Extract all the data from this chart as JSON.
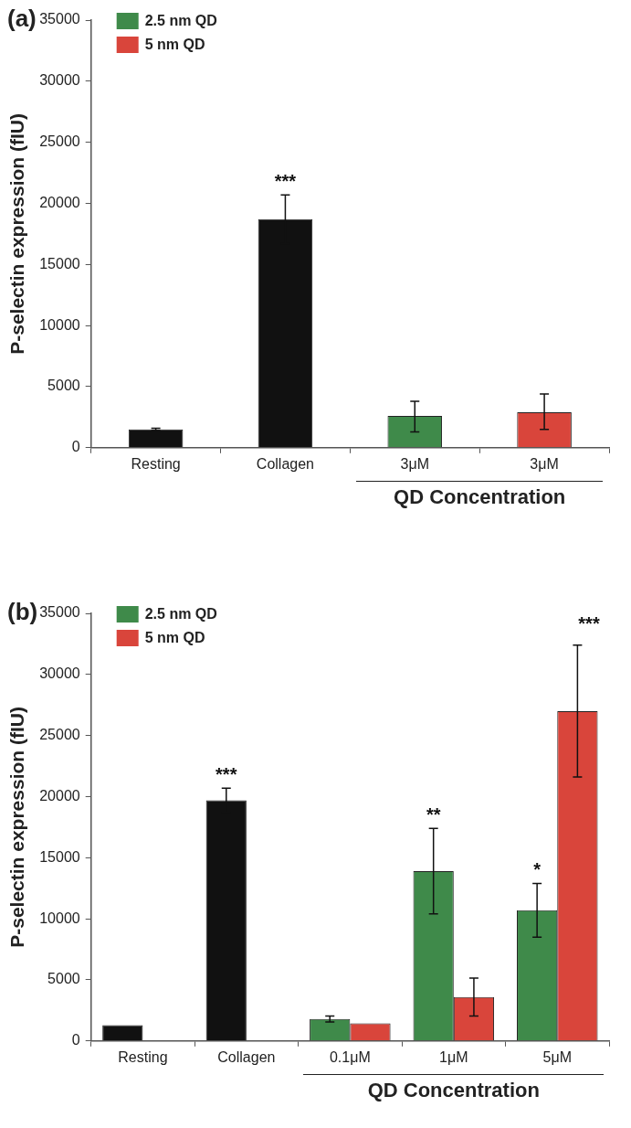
{
  "chart_data": [
    {
      "type": "bar",
      "title": "(a)",
      "ylabel": "P-selectin expression (fIU)",
      "xlabel": "QD Concentration",
      "categories": [
        "Resting",
        "Collagen",
        "3μM",
        "3μM"
      ],
      "series": [
        {
          "name": "2.5 nm QD",
          "color": "#3f8a4a",
          "colors": [
            "#111111",
            "#111111",
            "#3f8a4a",
            null
          ],
          "values": [
            1500,
            18700,
            2600,
            null
          ],
          "errors": [
            100,
            2000,
            [
              1300,
              3800
            ],
            null
          ]
        },
        {
          "name": "5 nm QD",
          "color": "#d9453b",
          "values": [
            null,
            null,
            null,
            2900
          ],
          "errors": [
            null,
            null,
            null,
            [
              1500,
              4400
            ]
          ]
        }
      ],
      "ylim": [
        0,
        35000
      ],
      "yticks": [
        0,
        5000,
        10000,
        15000,
        20000,
        25000,
        30000,
        35000
      ],
      "grid": false,
      "legend": "top left",
      "annotations": [
        {
          "text": "***",
          "x": "Collagen",
          "y": 18700
        }
      ]
    },
    {
      "type": "bar",
      "title": "(b)",
      "ylabel": "P-selectin expression (fIU)",
      "xlabel": "QD Concentration",
      "categories": [
        "Resting",
        "Collagen",
        "0.1μM",
        "1μM",
        "5μM"
      ],
      "series": [
        {
          "name": "2.5 nm QD",
          "color": "#3f8a4a",
          "colors": [
            "#111111",
            "#111111",
            "#3f8a4a",
            "#3f8a4a",
            "#3f8a4a"
          ],
          "values": [
            1300,
            19700,
            1800,
            13900,
            10700
          ],
          "errors": [
            null,
            1000,
            250,
            3500,
            2200
          ]
        },
        {
          "name": "5 nm QD",
          "color": "#d9453b",
          "values": [
            0,
            0,
            1450,
            3600,
            27000
          ],
          "errors": [
            null,
            null,
            null,
            1550,
            5400
          ]
        }
      ],
      "ylim": [
        0,
        35000
      ],
      "yticks": [
        0,
        5000,
        10000,
        15000,
        20000,
        25000,
        30000,
        35000
      ],
      "grid": false,
      "legend": "top left",
      "annotations": [
        {
          "text": "***",
          "x": "Collagen",
          "y": 19700
        },
        {
          "text": "**",
          "x": "1μM",
          "y": 13900
        },
        {
          "text": "*",
          "x": "5μM",
          "y": 10700
        },
        "***"
      ]
    }
  ]
}
